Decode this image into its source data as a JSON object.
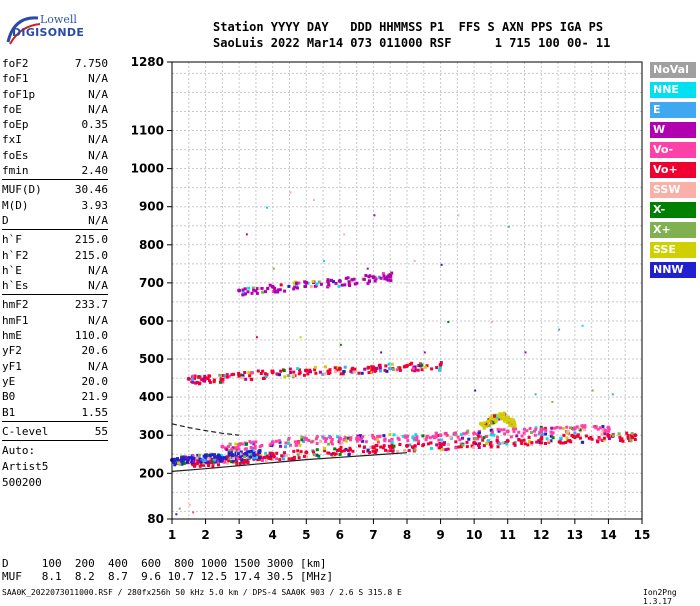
{
  "logo": {
    "line1": "Lowell",
    "line2": "DIGISONDE"
  },
  "header": {
    "line1": "Station YYYY DAY   DDD HHMMSS P1  FFS S AXN PPS IGA PS",
    "line2": "SaoLuis 2022 Mar14 073 011000 RSF      1 715 100 00- 11"
  },
  "params": [
    {
      "label": "foF2",
      "value": "7.750"
    },
    {
      "label": "foF1",
      "value": "N/A"
    },
    {
      "label": "foF1p",
      "value": "N/A"
    },
    {
      "label": "foE",
      "value": "N/A"
    },
    {
      "label": "foEp",
      "value": "0.35"
    },
    {
      "label": "fxI",
      "value": "N/A"
    },
    {
      "label": "foEs",
      "value": "N/A"
    },
    {
      "label": "fmin",
      "value": "2.40"
    },
    {
      "sep": true
    },
    {
      "label": "MUF(D)",
      "value": "30.46"
    },
    {
      "label": "M(D)",
      "value": "3.93"
    },
    {
      "label": "D",
      "value": "N/A"
    },
    {
      "sep": true
    },
    {
      "label": "h`F",
      "value": "215.0"
    },
    {
      "label": "h`F2",
      "value": "215.0"
    },
    {
      "label": "h`E",
      "value": "N/A"
    },
    {
      "label": "h`Es",
      "value": "N/A"
    },
    {
      "sep": true
    },
    {
      "label": "hmF2",
      "value": "233.7"
    },
    {
      "label": "hmF1",
      "value": "N/A"
    },
    {
      "label": "hmE",
      "value": "110.0"
    },
    {
      "label": "yF2",
      "value": "20.6"
    },
    {
      "label": "yF1",
      "value": "N/A"
    },
    {
      "label": "yE",
      "value": "20.0"
    },
    {
      "label": "B0",
      "value": "21.9"
    },
    {
      "label": "B1",
      "value": "1.55"
    },
    {
      "sep": true
    },
    {
      "label": "C-level",
      "value": "55"
    },
    {
      "sep": true
    }
  ],
  "auto": [
    "Auto:",
    "Artist5",
    "500200"
  ],
  "muf_table": {
    "line1": "D     100  200  400  600  800 1000 1500 3000 [km]",
    "line2": "MUF   8.1  8.2  8.7  9.6 10.7 12.5 17.4 30.5 [MHz]"
  },
  "footer": "SAA0K_2022073011000.RSF / 280fx256h 50 kHz 5.0 km / DPS-4 SAA0K 903 / 2.6 S 315.8 E",
  "version": "Ion2Png 1.3.17",
  "legend": [
    {
      "label": "NoVal",
      "color": "#a0a0a0"
    },
    {
      "label": "NNE",
      "color": "#00e0f0"
    },
    {
      "label": "E",
      "color": "#40a8f0"
    },
    {
      "label": "W",
      "color": "#b000b0"
    },
    {
      "label": "Vo-",
      "color": "#ff40a8"
    },
    {
      "label": "Vo+",
      "color": "#f00030"
    },
    {
      "label": "SSW",
      "color": "#f8b0a8"
    },
    {
      "label": "X-",
      "color": "#008000"
    },
    {
      "label": "X+",
      "color": "#80b050"
    },
    {
      "label": "SSE",
      "color": "#d0d000"
    },
    {
      "label": "NNW",
      "color": "#2020d0"
    }
  ],
  "chart_data": {
    "type": "scatter",
    "xlim": [
      1,
      15
    ],
    "ylim": [
      80,
      1280
    ],
    "x_ticks": [
      1,
      2,
      3,
      4,
      5,
      6,
      7,
      8,
      9,
      10,
      11,
      12,
      13,
      14,
      15
    ],
    "y_ticks": [
      80,
      200,
      300,
      400,
      500,
      600,
      700,
      800,
      900,
      1000,
      1100,
      1280
    ],
    "grid": true,
    "traces": [
      {
        "name": "F2 O-trace",
        "color": "#f00030",
        "x": [
          1.5,
          2.0,
          2.5,
          3.0,
          3.5,
          4.0,
          5.0,
          6.0,
          7.0,
          8.0,
          9.0,
          10.0,
          11.0,
          12.0,
          13.0,
          14.0,
          14.8
        ],
        "y": [
          230,
          232,
          235,
          240,
          245,
          250,
          255,
          262,
          268,
          272,
          276,
          280,
          285,
          290,
          295,
          298,
          300
        ]
      },
      {
        "name": "F2 O-trace upper",
        "color": "#ff40a8",
        "x": [
          2.5,
          3.0,
          4.0,
          5.0,
          6.0,
          7.0,
          8.0,
          9.0,
          10.0,
          11.0,
          12.0,
          13.0,
          14.0
        ],
        "y": [
          270,
          275,
          282,
          290,
          292,
          294,
          296,
          300,
          305,
          310,
          315,
          318,
          320
        ]
      },
      {
        "name": "low trace",
        "color": "#2020d0",
        "x": [
          1.0,
          1.3,
          1.6,
          2.0,
          2.4,
          2.8,
          3.2,
          3.6
        ],
        "y": [
          235,
          238,
          240,
          243,
          245,
          248,
          252,
          255
        ]
      },
      {
        "name": "second hop",
        "color": "#f00030",
        "x": [
          1.5,
          2.0,
          3.0,
          4.0,
          5.0,
          6.0,
          7.0,
          8.0,
          9.0
        ],
        "y": [
          448,
          450,
          458,
          465,
          470,
          475,
          478,
          482,
          485
        ]
      },
      {
        "name": "third hop",
        "color": "#b000b0",
        "x": [
          3.0,
          4.0,
          5.0,
          6.0,
          7.0,
          7.5
        ],
        "y": [
          680,
          690,
          700,
          705,
          715,
          720
        ]
      },
      {
        "name": "Es region",
        "color": "#d0d000",
        "x": [
          10.2,
          10.5,
          10.8,
          11.0,
          11.2
        ],
        "y": [
          330,
          345,
          355,
          340,
          330
        ]
      }
    ],
    "fit_lines": [
      {
        "name": "virtual height curve",
        "x": [
          1.0,
          2.0,
          3.0,
          4.0,
          5.0,
          6.0,
          7.0,
          8.0
        ],
        "y": [
          205,
          212,
          220,
          228,
          236,
          242,
          248,
          254
        ]
      },
      {
        "name": "dashed upper curve",
        "x": [
          1.0,
          1.5,
          2.0,
          2.5,
          3.0
        ],
        "y": [
          330,
          320,
          312,
          305,
          300
        ]
      }
    ],
    "sparse_points": [
      [
        3.2,
        830
      ],
      [
        4.5,
        940
      ],
      [
        3.8,
        900
      ],
      [
        5.2,
        920
      ],
      [
        6.1,
        830
      ],
      [
        7.0,
        880
      ],
      [
        9.5,
        880
      ],
      [
        11.0,
        850
      ],
      [
        4.0,
        740
      ],
      [
        5.5,
        760
      ],
      [
        6.8,
        740
      ],
      [
        8.2,
        760
      ],
      [
        9.0,
        750
      ],
      [
        10.5,
        600
      ],
      [
        11.5,
        520
      ],
      [
        12.5,
        580
      ],
      [
        13.2,
        590
      ],
      [
        3.5,
        560
      ],
      [
        4.8,
        560
      ],
      [
        6.0,
        540
      ],
      [
        7.2,
        520
      ],
      [
        8.5,
        520
      ],
      [
        9.2,
        600
      ],
      [
        10.0,
        420
      ],
      [
        11.8,
        410
      ],
      [
        12.3,
        390
      ],
      [
        13.5,
        420
      ],
      [
        14.1,
        410
      ],
      [
        1.2,
        110
      ],
      [
        1.5,
        120
      ],
      [
        1.1,
        95
      ],
      [
        1.6,
        100
      ]
    ]
  }
}
